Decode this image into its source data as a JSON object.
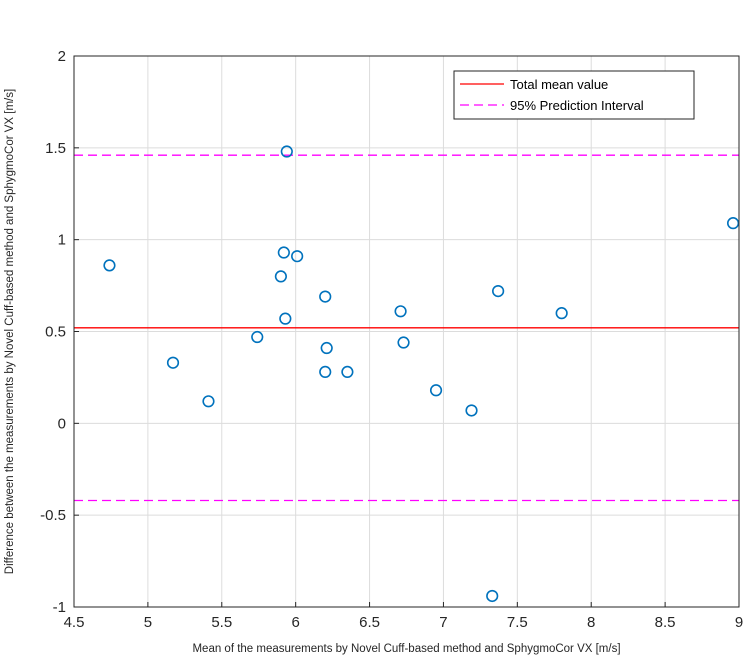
{
  "chart_data": {
    "type": "scatter",
    "title": "",
    "xlabel": "Mean of the measurements by Novel Cuff-based method and SphygmoCor VX [m/s]",
    "ylabel": "Difference between the measurements by Novel Cuff-based method and SphygmoCor VX [m/s]",
    "xlim": [
      4.5,
      9
    ],
    "ylim": [
      -1,
      2
    ],
    "xticks": [
      "4.5",
      "5",
      "5.5",
      "6",
      "6.5",
      "7",
      "7.5",
      "8",
      "8.5",
      "9"
    ],
    "yticks": [
      "-1",
      "-0.5",
      "0",
      "0.5",
      "1",
      "1.5",
      "2"
    ],
    "grid": true,
    "legend_position": "top-right",
    "series": [
      {
        "color": "#0072BD",
        "marker": "circle-open",
        "points": [
          {
            "x": 4.74,
            "y": 0.86
          },
          {
            "x": 5.17,
            "y": 0.33
          },
          {
            "x": 5.41,
            "y": 0.12
          },
          {
            "x": 5.74,
            "y": 0.47
          },
          {
            "x": 5.9,
            "y": 0.8
          },
          {
            "x": 5.92,
            "y": 0.93
          },
          {
            "x": 5.93,
            "y": 0.57
          },
          {
            "x": 5.94,
            "y": 1.48
          },
          {
            "x": 6.01,
            "y": 0.91
          },
          {
            "x": 6.2,
            "y": 0.69
          },
          {
            "x": 6.21,
            "y": 0.41
          },
          {
            "x": 6.2,
            "y": 0.28
          },
          {
            "x": 6.35,
            "y": 0.28
          },
          {
            "x": 6.71,
            "y": 0.61
          },
          {
            "x": 6.73,
            "y": 0.44
          },
          {
            "x": 6.95,
            "y": 0.18
          },
          {
            "x": 7.19,
            "y": 0.07
          },
          {
            "x": 7.37,
            "y": 0.72
          },
          {
            "x": 7.33,
            "y": -0.94
          },
          {
            "x": 7.8,
            "y": 0.6
          },
          {
            "x": 8.96,
            "y": 1.09
          }
        ]
      }
    ],
    "reference_lines": [
      {
        "name": "Total mean value",
        "y": 0.52,
        "color": "#FF0000",
        "style": "solid"
      },
      {
        "name": "95% Prediction Interval",
        "y": 1.46,
        "color": "#FF00FF",
        "style": "dashed"
      },
      {
        "name": "95% Prediction Interval",
        "y": -0.42,
        "color": "#FF00FF",
        "style": "dashed"
      }
    ],
    "legend": [
      {
        "label": "Total mean value",
        "color": "#FF0000",
        "style": "solid"
      },
      {
        "label": "95% Prediction Interval",
        "color": "#FF00FF",
        "style": "dashed"
      }
    ]
  }
}
